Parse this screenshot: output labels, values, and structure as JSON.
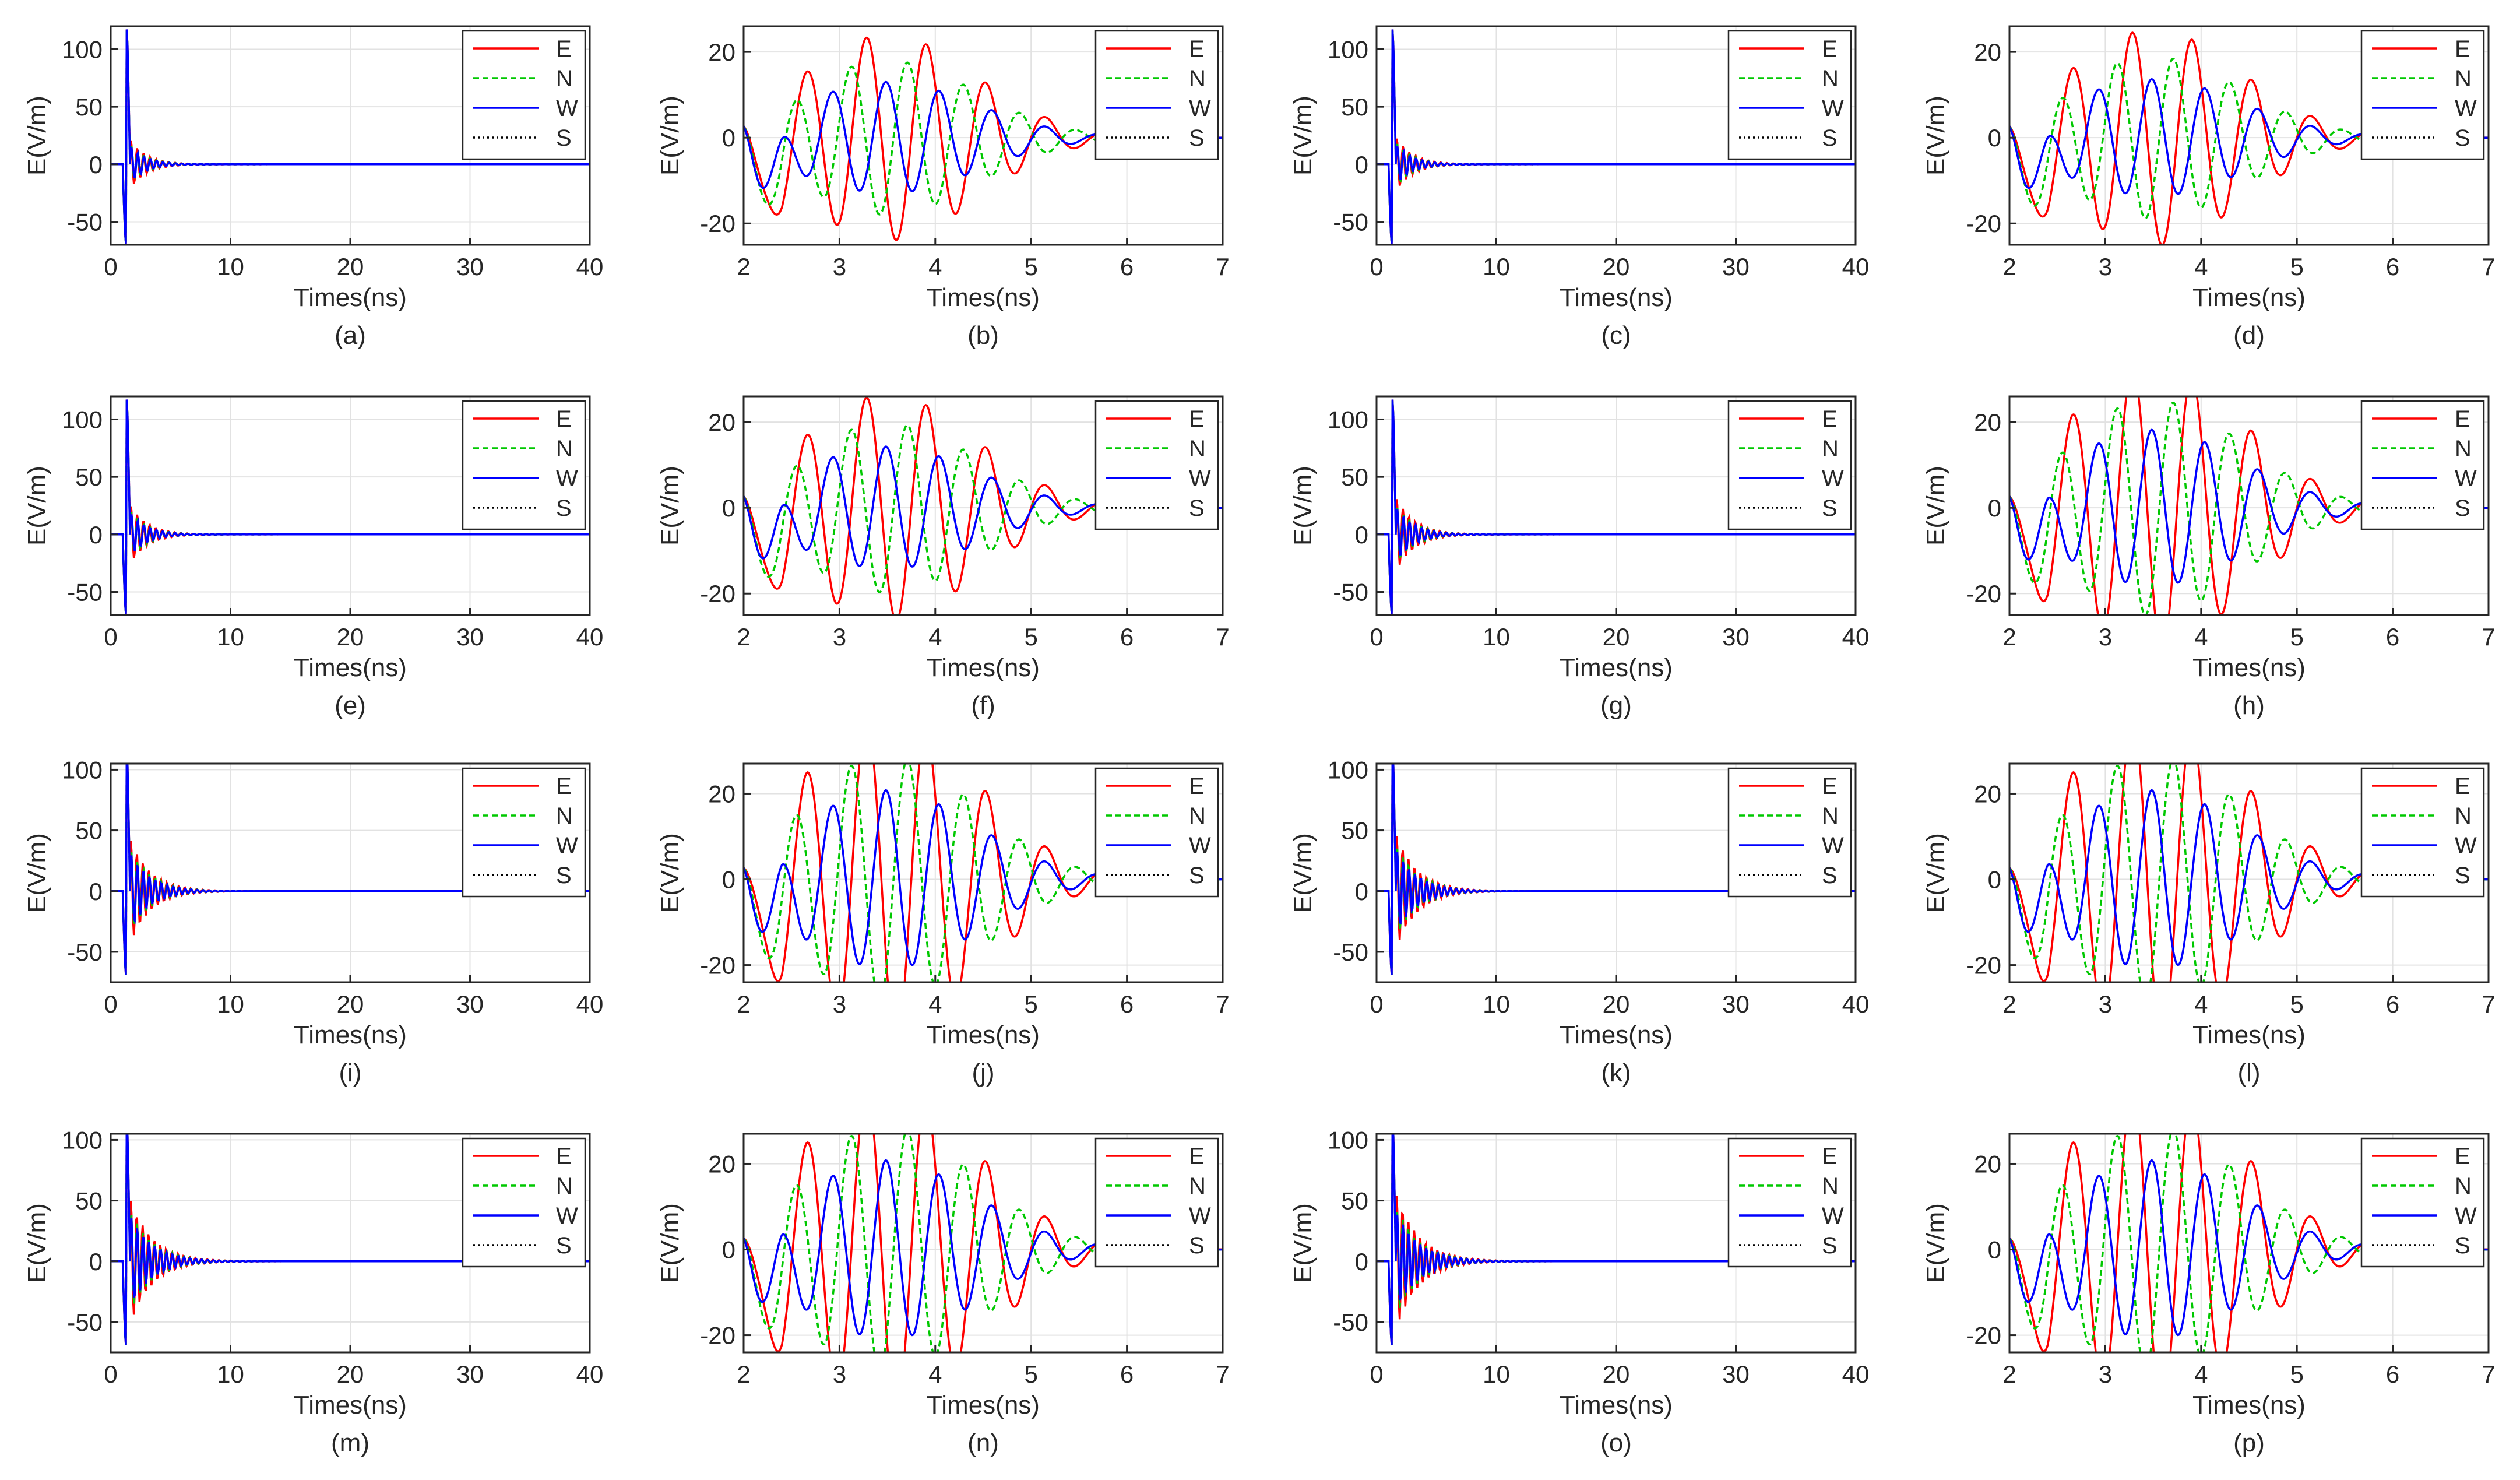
{
  "figure": {
    "panel_count": 16,
    "layout": "4 rows x 4 columns"
  },
  "colors": {
    "E": "#ff0000",
    "N": "#00c800",
    "W": "#0000ff",
    "S": "#000000",
    "grid": "#e2e2e2",
    "axis": "#262626"
  },
  "legend_entries": [
    "E",
    "N",
    "W",
    "S"
  ],
  "chart_data": [
    {
      "type": "line",
      "panel": "a",
      "caption": "(a)",
      "xlabel": "Times(ns)",
      "ylabel": "E(V/m)",
      "xlim": [
        0,
        40
      ],
      "ylim": [
        -70,
        120
      ],
      "xticks": [
        0,
        10,
        20,
        30,
        40
      ],
      "yticks": [
        -50,
        0,
        50,
        100
      ],
      "view": "long",
      "scale": 1.0,
      "grid": true,
      "legend": "top-right"
    },
    {
      "type": "line",
      "panel": "b",
      "caption": "(b)",
      "xlabel": "Times(ns)",
      "ylabel": "E(V/m)",
      "xlim": [
        2,
        7
      ],
      "ylim": [
        -25,
        26
      ],
      "xticks": [
        2,
        3,
        4,
        5,
        6,
        7
      ],
      "yticks": [
        -20,
        0,
        20
      ],
      "view": "zoom",
      "scale": 1.0,
      "grid": true,
      "legend": "top-right"
    },
    {
      "type": "line",
      "panel": "c",
      "caption": "(c)",
      "xlabel": "Times(ns)",
      "ylabel": "E(V/m)",
      "xlim": [
        0,
        40
      ],
      "ylim": [
        -70,
        120
      ],
      "xticks": [
        0,
        10,
        20,
        30,
        40
      ],
      "yticks": [
        -50,
        0,
        50,
        100
      ],
      "view": "long",
      "scale": 1.1,
      "grid": true,
      "legend": "top-right"
    },
    {
      "type": "line",
      "panel": "d",
      "caption": "(d)",
      "xlabel": "Times(ns)",
      "ylabel": "E(V/m)",
      "xlim": [
        2,
        7
      ],
      "ylim": [
        -25,
        26
      ],
      "xticks": [
        2,
        3,
        4,
        5,
        6,
        7
      ],
      "yticks": [
        -20,
        0,
        20
      ],
      "view": "zoom",
      "scale": 1.05,
      "grid": true,
      "legend": "top-right"
    },
    {
      "type": "line",
      "panel": "e",
      "caption": "(e)",
      "xlabel": "Times(ns)",
      "ylabel": "E(V/m)",
      "xlim": [
        0,
        40
      ],
      "ylim": [
        -70,
        120
      ],
      "xticks": [
        0,
        10,
        20,
        30,
        40
      ],
      "yticks": [
        -50,
        0,
        50,
        100
      ],
      "view": "long",
      "scale": 1.2,
      "grid": true,
      "legend": "top-right"
    },
    {
      "type": "line",
      "panel": "f",
      "caption": "(f)",
      "xlabel": "Times(ns)",
      "ylabel": "E(V/m)",
      "xlim": [
        2,
        7
      ],
      "ylim": [
        -25,
        26
      ],
      "xticks": [
        2,
        3,
        4,
        5,
        6,
        7
      ],
      "yticks": [
        -20,
        0,
        20
      ],
      "view": "zoom",
      "scale": 1.1,
      "grid": true,
      "legend": "top-right"
    },
    {
      "type": "line",
      "panel": "g",
      "caption": "(g)",
      "xlabel": "Times(ns)",
      "ylabel": "E(V/m)",
      "xlim": [
        0,
        40
      ],
      "ylim": [
        -70,
        120
      ],
      "xticks": [
        0,
        10,
        20,
        30,
        40
      ],
      "yticks": [
        -50,
        0,
        50,
        100
      ],
      "view": "long",
      "scale": 1.5,
      "grid": true,
      "legend": "top-right"
    },
    {
      "type": "line",
      "panel": "h",
      "caption": "(h)",
      "xlabel": "Times(ns)",
      "ylabel": "E(V/m)",
      "xlim": [
        2,
        7
      ],
      "ylim": [
        -25,
        26
      ],
      "xticks": [
        2,
        3,
        4,
        5,
        6,
        7
      ],
      "yticks": [
        -20,
        0,
        20
      ],
      "view": "zoom",
      "scale": 1.4,
      "grid": true,
      "legend": "top-right"
    },
    {
      "type": "line",
      "panel": "i",
      "caption": "(i)",
      "xlabel": "Times(ns)",
      "ylabel": "E(V/m)",
      "xlim": [
        0,
        40
      ],
      "ylim": [
        -75,
        105
      ],
      "xticks": [
        0,
        10,
        20,
        30,
        40
      ],
      "yticks": [
        -50,
        0,
        50,
        100
      ],
      "view": "long",
      "scale": 2.0,
      "grid": true,
      "legend": "top-right"
    },
    {
      "type": "line",
      "panel": "j",
      "caption": "(j)",
      "xlabel": "Times(ns)",
      "ylabel": "E(V/m)",
      "xlim": [
        2,
        7
      ],
      "ylim": [
        -24,
        27
      ],
      "xticks": [
        2,
        3,
        4,
        5,
        6,
        7
      ],
      "yticks": [
        -20,
        0,
        20
      ],
      "view": "zoom",
      "scale": 1.8,
      "grid": true,
      "legend": "top-right"
    },
    {
      "type": "line",
      "panel": "k",
      "caption": "(k)",
      "xlabel": "Times(ns)",
      "ylabel": "E(V/m)",
      "xlim": [
        0,
        40
      ],
      "ylim": [
        -75,
        105
      ],
      "xticks": [
        0,
        10,
        20,
        30,
        40
      ],
      "yticks": [
        -50,
        0,
        50,
        100
      ],
      "view": "long",
      "scale": 2.2,
      "grid": true,
      "legend": "top-right"
    },
    {
      "type": "line",
      "panel": "l",
      "caption": "(l)",
      "xlabel": "Times(ns)",
      "ylabel": "E(V/m)",
      "xlim": [
        2,
        7
      ],
      "ylim": [
        -24,
        27
      ],
      "xticks": [
        2,
        3,
        4,
        5,
        6,
        7
      ],
      "yticks": [
        -20,
        0,
        20
      ],
      "view": "zoom",
      "scale": 2.0,
      "grid": true,
      "legend": "top-right"
    },
    {
      "type": "line",
      "panel": "m",
      "caption": "(m)",
      "xlabel": "Times(ns)",
      "ylabel": "E(V/m)",
      "xlim": [
        0,
        40
      ],
      "ylim": [
        -75,
        105
      ],
      "xticks": [
        0,
        10,
        20,
        30,
        40
      ],
      "yticks": [
        -50,
        0,
        50,
        100
      ],
      "view": "long",
      "scale": 2.4,
      "grid": true,
      "legend": "top-right"
    },
    {
      "type": "line",
      "panel": "n",
      "caption": "(n)",
      "xlabel": "Times(ns)",
      "ylabel": "E(V/m)",
      "xlim": [
        2,
        7
      ],
      "ylim": [
        -24,
        27
      ],
      "xticks": [
        2,
        3,
        4,
        5,
        6,
        7
      ],
      "yticks": [
        -20,
        0,
        20
      ],
      "view": "zoom",
      "scale": 2.2,
      "grid": true,
      "legend": "top-right"
    },
    {
      "type": "line",
      "panel": "o",
      "caption": "(o)",
      "xlabel": "Times(ns)",
      "ylabel": "E(V/m)",
      "xlim": [
        0,
        40
      ],
      "ylim": [
        -75,
        105
      ],
      "xticks": [
        0,
        10,
        20,
        30,
        40
      ],
      "yticks": [
        -50,
        0,
        50,
        100
      ],
      "view": "long",
      "scale": 2.6,
      "grid": true,
      "legend": "top-right"
    },
    {
      "type": "line",
      "panel": "p",
      "caption": "(p)",
      "xlabel": "Times(ns)",
      "ylabel": "E(V/m)",
      "xlim": [
        2,
        7
      ],
      "ylim": [
        -24,
        27
      ],
      "xticks": [
        2,
        3,
        4,
        5,
        6,
        7
      ],
      "yticks": [
        -20,
        0,
        20
      ],
      "view": "zoom",
      "scale": 2.4,
      "grid": true,
      "legend": "top-right"
    }
  ]
}
